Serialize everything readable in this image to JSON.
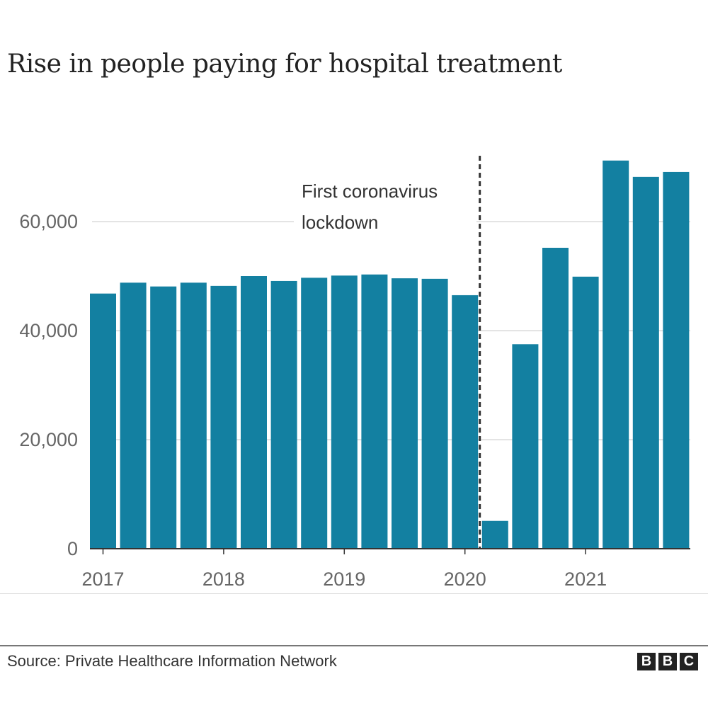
{
  "chart_data": {
    "type": "bar",
    "title": "Rise in people paying for hospital treatment",
    "categories": [
      "2017 Q1",
      "2017 Q2",
      "2017 Q3",
      "2017 Q4",
      "2018 Q1",
      "2018 Q2",
      "2018 Q3",
      "2018 Q4",
      "2019 Q1",
      "2019 Q2",
      "2019 Q3",
      "2019 Q4",
      "2020 Q1",
      "2020 Q2",
      "2020 Q3",
      "2020 Q4",
      "2021 Q1",
      "2021 Q2",
      "2021 Q3",
      "2021 Q4"
    ],
    "values": [
      46800,
      48800,
      48100,
      48800,
      48200,
      50000,
      49100,
      49700,
      50100,
      50300,
      49600,
      49500,
      46500,
      5100,
      37500,
      55200,
      49900,
      71200,
      68200,
      69100
    ],
    "xlabel": "",
    "ylabel": "",
    "ylim": [
      0,
      72000
    ],
    "yticks": [
      0,
      20000,
      40000,
      60000
    ],
    "ytick_labels": [
      "0",
      "20,000",
      "40,000",
      "60,000"
    ],
    "xtick_labels": [
      "2017",
      "2018",
      "2019",
      "2020",
      "2021"
    ],
    "grid": true,
    "bar_color": "#1380a1",
    "annotation": {
      "lines": [
        "First coronavirus",
        "lockdown"
      ],
      "after_category": "2020 Q1"
    }
  },
  "footer": {
    "source": "Source: Private Healthcare Information Network",
    "logo_letters": [
      "B",
      "B",
      "C"
    ]
  }
}
